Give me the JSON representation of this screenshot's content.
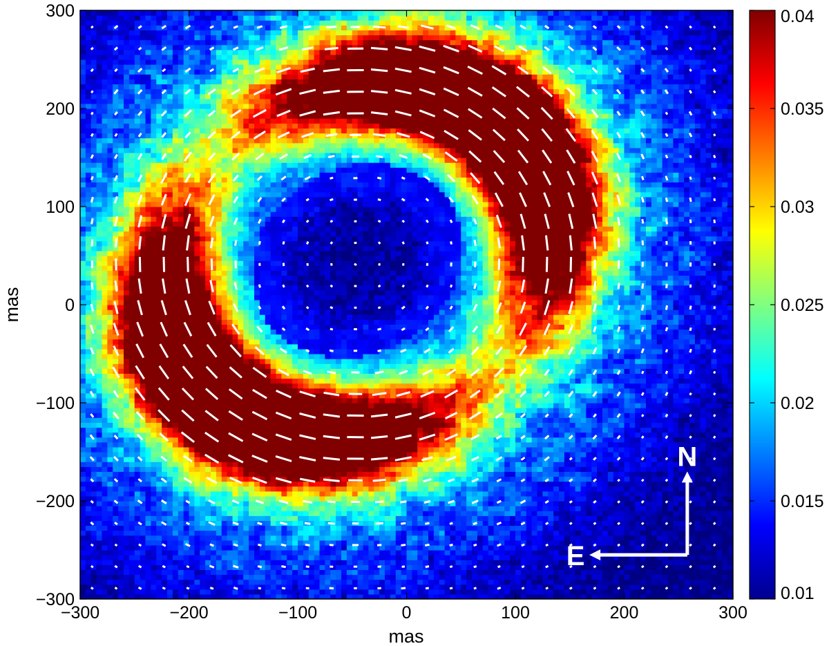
{
  "chart_data": {
    "type": "heatmap",
    "title": "",
    "xlabel": "mas",
    "ylabel": "mas",
    "xlim": [
      -300,
      300
    ],
    "ylim": [
      -300,
      300
    ],
    "x_ticks": [
      -300,
      -200,
      -100,
      0,
      100,
      200,
      300
    ],
    "y_ticks": [
      -300,
      -200,
      -100,
      0,
      100,
      200,
      300
    ],
    "x_tick_labels": [
      "−300",
      "−200",
      "−100",
      "0",
      "100",
      "200",
      "300"
    ],
    "y_tick_labels": [
      "−300",
      "−200",
      "−100",
      "0",
      "100",
      "200",
      "300"
    ],
    "colorbar": {
      "colormap": "jet",
      "range": [
        0.01,
        0.04
      ],
      "ticks": [
        0.01,
        0.015,
        0.02,
        0.025,
        0.03,
        0.035,
        0.04
      ],
      "tick_labels": [
        "0.01",
        "0.015",
        "0.02",
        "0.025",
        "0.03",
        "0.035",
        "0.04"
      ]
    },
    "features": [
      {
        "shape": "lobe",
        "center": [
          -150,
          -80
        ],
        "approx_extent_mas": [
          220,
          150
        ],
        "value": 0.04
      },
      {
        "shape": "lobe",
        "center": [
          55,
          160
        ],
        "approx_extent_mas": [
          170,
          110
        ],
        "value": 0.04
      }
    ],
    "overlay": {
      "type": "polarization-vectors",
      "color": "#ffffff",
      "grid_spacing_mas": 22,
      "orientation": "azimuthal"
    },
    "compass": {
      "north_label": "N",
      "east_label": "E",
      "origin": [
        258,
        -255
      ],
      "north_arrow_tip": [
        258,
        -170
      ],
      "east_arrow_tip": [
        168,
        -255
      ]
    },
    "grid": false
  }
}
